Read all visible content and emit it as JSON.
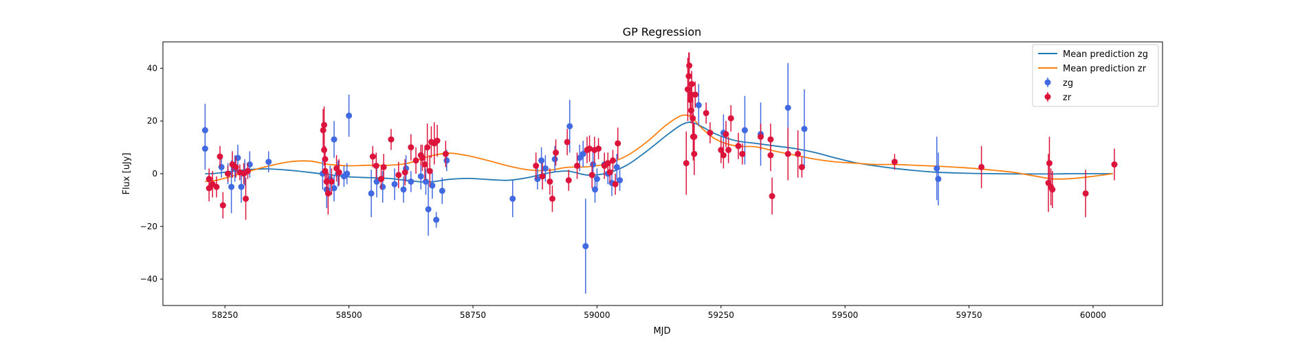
{
  "chart_data": {
    "type": "scatter",
    "title": "GP Regression",
    "xlabel": "MJD",
    "ylabel": "Flux [uJy]",
    "xlim": [
      58125,
      60140
    ],
    "ylim": [
      -50,
      50
    ],
    "xticks": [
      58250,
      58500,
      58750,
      59000,
      59250,
      59500,
      59750,
      60000
    ],
    "yticks": [
      -40,
      -20,
      0,
      20,
      40
    ],
    "grid": false,
    "legend_position": "top-right",
    "legend": [
      "Mean prediction zg",
      "Mean prediction zr",
      "zg",
      "zr"
    ],
    "colors": {
      "zg_line": "#1f77b4",
      "zr_line": "#ff7f0e",
      "zg_points": "#4169e1",
      "zr_points": "#dc143c"
    },
    "series": [
      {
        "name": "Mean prediction zg",
        "kind": "line",
        "x": [
          58210,
          58230,
          58260,
          58300,
          58340,
          58380,
          58420,
          58460,
          58500,
          58540,
          58580,
          58620,
          58660,
          58700,
          58740,
          58780,
          58820,
          58860,
          58900,
          58940,
          58980,
          59020,
          59060,
          59100,
          59140,
          59170,
          59190,
          59210,
          59240,
          59280,
          59320,
          59360,
          59400,
          59440,
          59480,
          59520,
          59560,
          59600,
          59640,
          59680,
          59720,
          59760,
          59800,
          59840,
          59880,
          59920,
          59960,
          60000,
          60040
        ],
        "y": [
          0.0,
          0.1,
          0.8,
          1.6,
          1.8,
          1.3,
          0.5,
          -0.4,
          -1.2,
          -1.5,
          -1.8,
          -2.6,
          -3.2,
          -2.2,
          -1.8,
          -2.2,
          -2.5,
          -1.5,
          0.2,
          1.0,
          -0.5,
          0.2,
          3.2,
          8.5,
          14.5,
          18.5,
          19.5,
          18.0,
          15.0,
          12.5,
          11.5,
          10.5,
          9.5,
          8.0,
          6.0,
          4.2,
          3.0,
          2.0,
          1.2,
          0.6,
          0.3,
          0.1,
          0.0,
          -0.1,
          -0.1,
          -0.1,
          0.0,
          0.0,
          0.0
        ]
      },
      {
        "name": "Mean prediction zr",
        "kind": "line",
        "x": [
          58210,
          58230,
          58260,
          58300,
          58340,
          58380,
          58420,
          58460,
          58500,
          58540,
          58580,
          58620,
          58660,
          58700,
          58740,
          58780,
          58820,
          58860,
          58900,
          58940,
          58980,
          59020,
          59060,
          59100,
          59140,
          59170,
          59190,
          59210,
          59240,
          59280,
          59320,
          59360,
          59400,
          59440,
          59480,
          59520,
          59560,
          59600,
          59640,
          59680,
          59720,
          59760,
          59800,
          59840,
          59880,
          59920,
          59960,
          60000,
          60040
        ],
        "y": [
          -3.0,
          -2.6,
          -1.2,
          1.0,
          3.0,
          4.5,
          4.8,
          3.5,
          3.0,
          3.2,
          3.2,
          4.0,
          6.5,
          7.8,
          6.8,
          5.0,
          3.0,
          1.5,
          1.2,
          2.4,
          2.6,
          3.8,
          6.8,
          12.0,
          18.5,
          22.0,
          21.5,
          17.5,
          13.0,
          10.5,
          10.2,
          8.5,
          7.0,
          5.5,
          4.5,
          4.0,
          3.5,
          3.5,
          3.2,
          2.9,
          2.5,
          2.0,
          1.3,
          0.5,
          -0.8,
          -2.0,
          -1.8,
          -1.0,
          0.0
        ]
      },
      {
        "name": "zg",
        "kind": "errorbar",
        "points": [
          [
            58210,
            16.5,
            10
          ],
          [
            58210,
            9.5,
            8
          ],
          [
            58243,
            2.5,
            4
          ],
          [
            58256,
            0.0,
            4
          ],
          [
            58263,
            -5.0,
            10
          ],
          [
            58270,
            2.0,
            5
          ],
          [
            58276,
            6.0,
            5
          ],
          [
            58283,
            -5.0,
            6
          ],
          [
            58290,
            0.5,
            5
          ],
          [
            58300,
            3.5,
            5
          ],
          [
            58338,
            4.5,
            4
          ],
          [
            58447,
            0.0,
            6
          ],
          [
            58455,
            -6.0,
            7
          ],
          [
            58462,
            -2.0,
            5
          ],
          [
            58470,
            13.0,
            7
          ],
          [
            58470,
            -5.5,
            5
          ],
          [
            58478,
            0.0,
            5
          ],
          [
            58490,
            -1.0,
            4
          ],
          [
            58496,
            0.0,
            4
          ],
          [
            58500,
            22.0,
            8
          ],
          [
            58545,
            -7.5,
            9
          ],
          [
            58556,
            -3.0,
            6
          ],
          [
            58568,
            -5.0,
            6
          ],
          [
            58592,
            -4.0,
            6
          ],
          [
            58610,
            -6.0,
            5
          ],
          [
            58615,
            2.0,
            5
          ],
          [
            58625,
            -3.0,
            4
          ],
          [
            58645,
            -1.0,
            5
          ],
          [
            58655,
            -3.0,
            5
          ],
          [
            58660,
            -13.5,
            10
          ],
          [
            58668,
            -4.5,
            5
          ],
          [
            58676,
            -17.5,
            3
          ],
          [
            58688,
            -6.5,
            5
          ],
          [
            58697,
            5.0,
            4
          ],
          [
            58830,
            -9.5,
            7
          ],
          [
            58880,
            -2.0,
            4
          ],
          [
            58888,
            5.0,
            5
          ],
          [
            58896,
            2.0,
            5
          ],
          [
            58915,
            5.5,
            5
          ],
          [
            58945,
            18.0,
            10
          ],
          [
            58965,
            6.0,
            5
          ],
          [
            58972,
            7.5,
            5
          ],
          [
            58977,
            -27.5,
            18
          ],
          [
            58992,
            3.5,
            5
          ],
          [
            58996,
            -6.0,
            5
          ],
          [
            59000,
            -2.0,
            4
          ],
          [
            59015,
            3.5,
            4
          ],
          [
            59022,
            0.0,
            4
          ],
          [
            59030,
            -3.5,
            5
          ],
          [
            59040,
            2.5,
            5
          ],
          [
            59046,
            -2.5,
            4
          ],
          [
            59205,
            26.0,
            8
          ],
          [
            59255,
            15.5,
            7
          ],
          [
            59298,
            16.5,
            13
          ],
          [
            59330,
            15.0,
            12
          ],
          [
            59385,
            25.0,
            17
          ],
          [
            59418,
            17.0,
            15
          ],
          [
            59685,
            2.0,
            12
          ],
          [
            59688,
            -2.0,
            10
          ]
        ]
      },
      {
        "name": "zr",
        "kind": "errorbar",
        "points": [
          [
            58218,
            -2.0,
            4
          ],
          [
            58218,
            -5.5,
            5
          ],
          [
            58225,
            -4.0,
            5
          ],
          [
            58233,
            -5.0,
            4
          ],
          [
            58240,
            6.5,
            4
          ],
          [
            58246,
            -12.0,
            5
          ],
          [
            58256,
            0.0,
            3
          ],
          [
            58265,
            3.5,
            5
          ],
          [
            58272,
            2.5,
            4
          ],
          [
            58280,
            0.5,
            3
          ],
          [
            58288,
            0.0,
            4
          ],
          [
            58292,
            -9.5,
            8
          ],
          [
            58296,
            1.0,
            3
          ],
          [
            58448,
            16.5,
            8
          ],
          [
            58450,
            18.5,
            7
          ],
          [
            58450,
            9.0,
            6
          ],
          [
            58452,
            5.5,
            5
          ],
          [
            58452,
            1.0,
            5
          ],
          [
            58455,
            -3.0,
            5
          ],
          [
            58458,
            -7.5,
            8
          ],
          [
            58465,
            -3.0,
            5
          ],
          [
            58475,
            2.0,
            5
          ],
          [
            58480,
            0.5,
            5
          ],
          [
            58548,
            6.5,
            4
          ],
          [
            58555,
            3.0,
            5
          ],
          [
            58565,
            -2.0,
            4
          ],
          [
            58570,
            2.5,
            5
          ],
          [
            58585,
            13.0,
            4
          ],
          [
            58600,
            -0.5,
            5
          ],
          [
            58613,
            0.5,
            5
          ],
          [
            58625,
            10.0,
            5
          ],
          [
            58635,
            5.0,
            5
          ],
          [
            58645,
            7.0,
            4
          ],
          [
            58648,
            6.0,
            5
          ],
          [
            58653,
            3.5,
            6
          ],
          [
            58658,
            10.0,
            9
          ],
          [
            58663,
            1.0,
            6
          ],
          [
            58666,
            12.0,
            6
          ],
          [
            58672,
            11.5,
            8
          ],
          [
            58678,
            12.5,
            6
          ],
          [
            58695,
            7.5,
            5
          ],
          [
            58877,
            3.0,
            5
          ],
          [
            58890,
            -1.0,
            5
          ],
          [
            58905,
            -3.0,
            5
          ],
          [
            58910,
            -9.5,
            5
          ],
          [
            58917,
            8.0,
            5
          ],
          [
            58940,
            12.0,
            5
          ],
          [
            58943,
            -2.5,
            4
          ],
          [
            58960,
            3.0,
            5
          ],
          [
            58980,
            9.0,
            5
          ],
          [
            58985,
            9.5,
            5
          ],
          [
            58990,
            -0.5,
            5
          ],
          [
            58995,
            9.0,
            5
          ],
          [
            59003,
            9.5,
            4
          ],
          [
            59015,
            3.0,
            5
          ],
          [
            59022,
            4.0,
            4
          ],
          [
            59026,
            0.5,
            4
          ],
          [
            59032,
            5.0,
            4
          ],
          [
            59037,
            -4.0,
            4
          ],
          [
            59042,
            11.5,
            6
          ],
          [
            59180,
            4.0,
            12
          ],
          [
            59183,
            32.0,
            12
          ],
          [
            59185,
            37.0,
            9
          ],
          [
            59186,
            41.0,
            5
          ],
          [
            59188,
            28.0,
            6
          ],
          [
            59190,
            30.0,
            5
          ],
          [
            59190,
            24.0,
            5
          ],
          [
            59191,
            34.0,
            5
          ],
          [
            59193,
            21.0,
            8
          ],
          [
            59194,
            14.0,
            9
          ],
          [
            59196,
            7.5,
            8
          ],
          [
            59196,
            14.0,
            5
          ],
          [
            59198,
            30.0,
            5
          ],
          [
            59220,
            23.0,
            4
          ],
          [
            59228,
            15.5,
            4
          ],
          [
            59250,
            9.0,
            5
          ],
          [
            59255,
            7.0,
            5
          ],
          [
            59260,
            15.0,
            5
          ],
          [
            59265,
            9.0,
            5
          ],
          [
            59270,
            21.0,
            5
          ],
          [
            59285,
            10.5,
            5
          ],
          [
            59293,
            7.5,
            4
          ],
          [
            59330,
            14.0,
            5
          ],
          [
            59350,
            13.0,
            6
          ],
          [
            59350,
            7.0,
            6
          ],
          [
            59353,
            -8.5,
            7
          ],
          [
            59385,
            7.5,
            10
          ],
          [
            59405,
            7.5,
            9
          ],
          [
            59413,
            2.5,
            4
          ],
          [
            59600,
            4.5,
            3
          ],
          [
            59775,
            2.5,
            8
          ],
          [
            59910,
            -3.5,
            11
          ],
          [
            59912,
            4.0,
            10
          ],
          [
            59915,
            -5.0,
            7
          ],
          [
            59918,
            -6.0,
            7
          ],
          [
            59985,
            -7.5,
            9
          ],
          [
            60043,
            3.5,
            6
          ]
        ]
      }
    ]
  }
}
